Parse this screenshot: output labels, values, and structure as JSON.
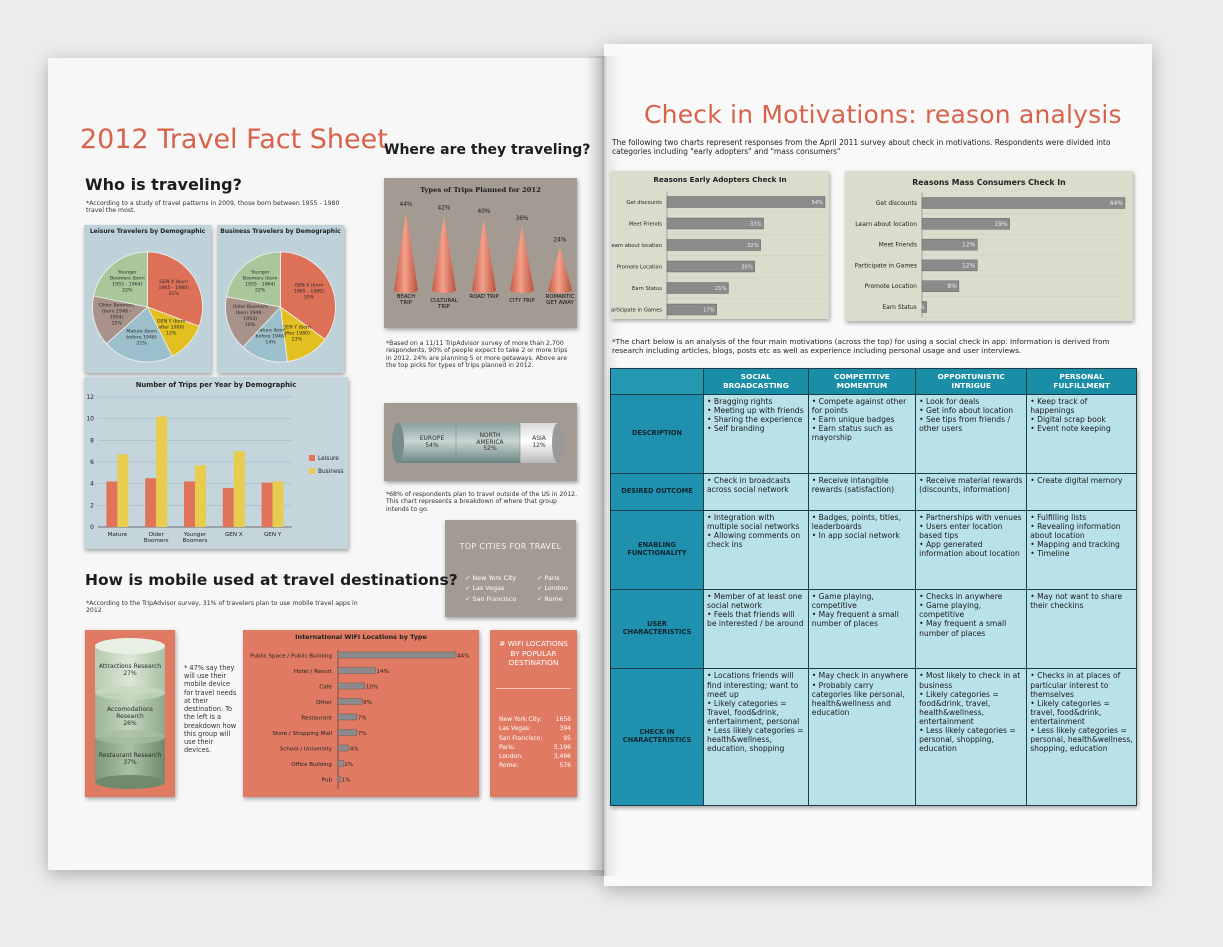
{
  "left": {
    "title": "2012 Travel Fact Sheet",
    "who": {
      "heading": "Who is traveling?",
      "note": "*According to a study of travel patterns in 2009, those born between 1955 - 1980 travel the most.",
      "pie1": {
        "title": "Leisure Travelers by Demographic",
        "slices": [
          {
            "label": "GEN X (born 1965 - 1980)",
            "pct": "31%",
            "value": 31,
            "color": "#dd7157"
          },
          {
            "label": "GEN Y (born after 1980)",
            "pct": "12%",
            "value": 12,
            "color": "#e3c020"
          },
          {
            "label": "Mature (born before 1946)",
            "pct": "21%",
            "value": 21,
            "color": "#9bbfcb"
          },
          {
            "label": "Older Boomers (born 1946 - 1954)",
            "pct": "15%",
            "value": 15,
            "color": "#a8928a"
          },
          {
            "label": "Younger Boomers (born 1955 - 1964)",
            "pct": "22%",
            "value": 22,
            "color": "#a9c79a"
          }
        ]
      },
      "pie2": {
        "title": "Business Travelers by Demographic",
        "slices": [
          {
            "label": "GEN X (born 1965 - 1980)",
            "pct": "35%",
            "value": 35,
            "color": "#dd7157"
          },
          {
            "label": "GEN Y (born after 1980)",
            "pct": "13%",
            "value": 13,
            "color": "#e3c020"
          },
          {
            "label": "Mature (born before 1946)",
            "pct": "14%",
            "value": 14,
            "color": "#9bbfcb"
          },
          {
            "label": "Older Boomers (born 1946 - 1954)",
            "pct": "16%",
            "value": 16,
            "color": "#a8928a"
          },
          {
            "label": "Younger Boomers (born 1955 - 1964)",
            "pct": "22%",
            "value": 22,
            "color": "#a9c79a"
          }
        ]
      }
    },
    "trips_chart": {
      "type": "bar",
      "title": "Number of Trips per Year by Demographic",
      "categories": [
        "Mature",
        "Older Boomers",
        "Younger Boomers",
        "GEN X",
        "GEN Y"
      ],
      "series": [
        {
          "name": "Leisure",
          "color": "#e0735a",
          "values": [
            4.2,
            4.5,
            4.2,
            3.6,
            4.1
          ]
        },
        {
          "name": "Business",
          "color": "#e8cc4e",
          "values": [
            6.7,
            10.2,
            5.7,
            7.0,
            4.2
          ]
        }
      ],
      "yticks": [
        "0",
        "2",
        "4",
        "6",
        "8",
        "10",
        "12"
      ],
      "ylim": [
        0,
        12
      ]
    },
    "where": {
      "heading": "Where are they traveling?",
      "cone_title": "Types of Trips Planned for 2012",
      "cones": [
        {
          "label": "BEACH TRIP",
          "pct": "44%",
          "value": 44
        },
        {
          "label": "CULTURAL TRIP",
          "pct": "42%",
          "value": 42
        },
        {
          "label": "ROAD TRIP",
          "pct": "40%",
          "value": 40
        },
        {
          "label": "CITY TRIP",
          "pct": "36%",
          "value": 36
        },
        {
          "label": "ROMANTIC GET AWAY",
          "pct": "24%",
          "value": 24
        }
      ],
      "cone_note": "*Based on a 11/11 TripAdvisor survey of more than 2,700 respondents, 90% of people expect to take 2 or more trips in 2012. 24% are planning 5 or more getaways. Above are the top picks for types of trips planned in 2012.",
      "cylinder": [
        {
          "label": "EUROPE",
          "pct": "54%"
        },
        {
          "label": "NORTH AMERICA",
          "pct": "52%"
        },
        {
          "label": "ASIA",
          "pct": "12%"
        }
      ],
      "cylinder_note": "*68% of respondents plan to travel outside of the US in 2012. This chart represents a breakdown of where that group intends to go.",
      "top_cities_title": "TOP CITIES FOR TRAVEL",
      "top_cities_left": [
        "New York City",
        "Las Vegas",
        "San Francisco"
      ],
      "top_cities_right": [
        "Paris",
        "London",
        "Rome"
      ]
    },
    "mobile": {
      "heading": "How is mobile used at travel destinations?",
      "note": "*According to the TripAdvisor survey, 31% of travelers plan to use mobile travel apps in 2012",
      "stack": [
        {
          "label": "Attractions Research",
          "pct": "27%"
        },
        {
          "label": "Accomodations Research",
          "pct": "26%"
        },
        {
          "label": "Restaurant Research",
          "pct": "37%"
        }
      ],
      "stack_note": "* 47% say they will use their mobile device for travel needs at their destination. To the left is a breakdown how this group will use their devices.",
      "wifi_title": "International WiFi Locations by Type",
      "wifi": [
        {
          "label": "Public Space / Public Building",
          "pct": "44%",
          "value": 44
        },
        {
          "label": "Hotel / Resort",
          "pct": "14%",
          "value": 14
        },
        {
          "label": "Cafe",
          "pct": "10%",
          "value": 10
        },
        {
          "label": "Other",
          "pct": "9%",
          "value": 9
        },
        {
          "label": "Restaurant",
          "pct": "7%",
          "value": 7
        },
        {
          "label": "Store / Shopping Mall",
          "pct": "7%",
          "value": 7
        },
        {
          "label": "School / University",
          "pct": "4%",
          "value": 4
        },
        {
          "label": "Office Building",
          "pct": "2%",
          "value": 2
        },
        {
          "label": "Pub",
          "pct": "1%",
          "value": 1
        }
      ],
      "popular_title": "# WIFI LOCATIONS BY POPULAR DESTINATION",
      "popular": [
        {
          "city": "New York City:",
          "count": "1656"
        },
        {
          "city": "Las Vegas:",
          "count": "394"
        },
        {
          "city": "San Francisco:",
          "count": "95"
        },
        {
          "city": "Paris:",
          "count": "5,196"
        },
        {
          "city": "London:",
          "count": "3,496"
        },
        {
          "city": "Rome:",
          "count": "576"
        }
      ]
    }
  },
  "right": {
    "title": "Check in Motivations: reason analysis",
    "intro": "The following two charts represent responses from the April 2011 survey about check in motivations. Respondents were divided into categories including \"early adopters\" and \"mass consumers\"",
    "early": {
      "title": "Reasons Early Adopters Check In",
      "bars": [
        {
          "label": "Get discounts",
          "pct": "54%",
          "value": 54
        },
        {
          "label": "Meet Friends",
          "pct": "33%",
          "value": 33
        },
        {
          "label": "Learn about location",
          "pct": "32%",
          "value": 32
        },
        {
          "label": "Promote Location",
          "pct": "30%",
          "value": 30
        },
        {
          "label": "Earn Status",
          "pct": "21%",
          "value": 21
        },
        {
          "label": "Participate in Games",
          "pct": "17%",
          "value": 17
        }
      ]
    },
    "mass": {
      "title": "Reasons Mass Consumers Check In",
      "bars": [
        {
          "label": "Get discounts",
          "pct": "44%",
          "value": 44
        },
        {
          "label": "Learn about location",
          "pct": "19%",
          "value": 19
        },
        {
          "label": "Meet Friends",
          "pct": "12%",
          "value": 12
        },
        {
          "label": "Participate in Games",
          "pct": "12%",
          "value": 12
        },
        {
          "label": "Promote Location",
          "pct": "8%",
          "value": 8
        },
        {
          "label": "Earn Status",
          "pct": "1%",
          "value": 1
        }
      ]
    },
    "analysis_note": "*The chart below is an analysis of the four main motivations (across the top) for using a social check in app. Information is derived from research including articles, blogs, posts etc as well as experience including personal usage and user interviews.",
    "table": {
      "columns": [
        "SOCIAL BROADCASTING",
        "COMPETITIVE MOMENTUM",
        "OPPORTUNISTIC INTRIGUE",
        "PERSONAL FULFILLMENT"
      ],
      "rows": [
        {
          "header": "DESCRIPTION",
          "cells": [
            [
              "• Bragging rights",
              "• Meeting up with friends",
              "• Sharing the experience",
              "• Self branding"
            ],
            [
              "• Compete against other for points",
              "• Earn unique badges",
              "• Earn status such as mayorship"
            ],
            [
              "• Look for deals",
              "• Get info about location",
              "• See tips from friends / other users"
            ],
            [
              "• Keep track of happenings",
              "• Digital scrap book",
              "• Event note keeping"
            ]
          ]
        },
        {
          "header": "DESIRED OUTCOME",
          "cells": [
            [
              "• Check in broadcasts across social network"
            ],
            [
              "• Receive intangible rewards (satisfaction)"
            ],
            [
              "• Receive material rewards  (discounts, information)"
            ],
            [
              "• Create digital memory"
            ]
          ]
        },
        {
          "header": "ENABLING FUNCTIONALITY",
          "cells": [
            [
              "• Integration with multiple social networks",
              "• Allowing comments on check ins"
            ],
            [
              "• Badges, points, titles, leaderboards",
              "• In app social network"
            ],
            [
              "• Partnerships with venues",
              "• Users enter location based tips",
              "• App generated information about location"
            ],
            [
              "• Fulfilling lists",
              "• Revealing information about location",
              "• Mapping and tracking",
              "• Timeline"
            ]
          ]
        },
        {
          "header": "USER CHARACTERISTICS",
          "cells": [
            [
              "• Member of at least one social network",
              "• Feels that friends will be interested / be around"
            ],
            [
              "• Game playing, competitive",
              "• May frequent a small number of places"
            ],
            [
              "• Checks in anywhere",
              "• Game playing, competitive",
              "• May frequent a small number of places"
            ],
            [
              "• May not want to share their checkins"
            ]
          ]
        },
        {
          "header": "CHECK IN CHARACTERISTICS",
          "cells": [
            [
              "• Locations friends will find interesting; want to meet up",
              "• Likely categories = Travel, food&drink, entertainment, personal",
              "• Less likely categories = health&wellness, education, shopping"
            ],
            [
              "• May check in anywhere",
              "• Probably carry categories like personal, health&wellness and education"
            ],
            [
              "• Most likely to check in at business",
              "• Likely categories = food&drink, travel, health&wellness, entertainment",
              "• Less likely categories = personal, shopping, education"
            ],
            [
              "• Checks in at places of particular interest to themselves",
              "• Likely categories = travel, food&drink, entertainment",
              "• Less likely categories = personal, health&wellness, shopping, education"
            ]
          ]
        }
      ]
    }
  }
}
